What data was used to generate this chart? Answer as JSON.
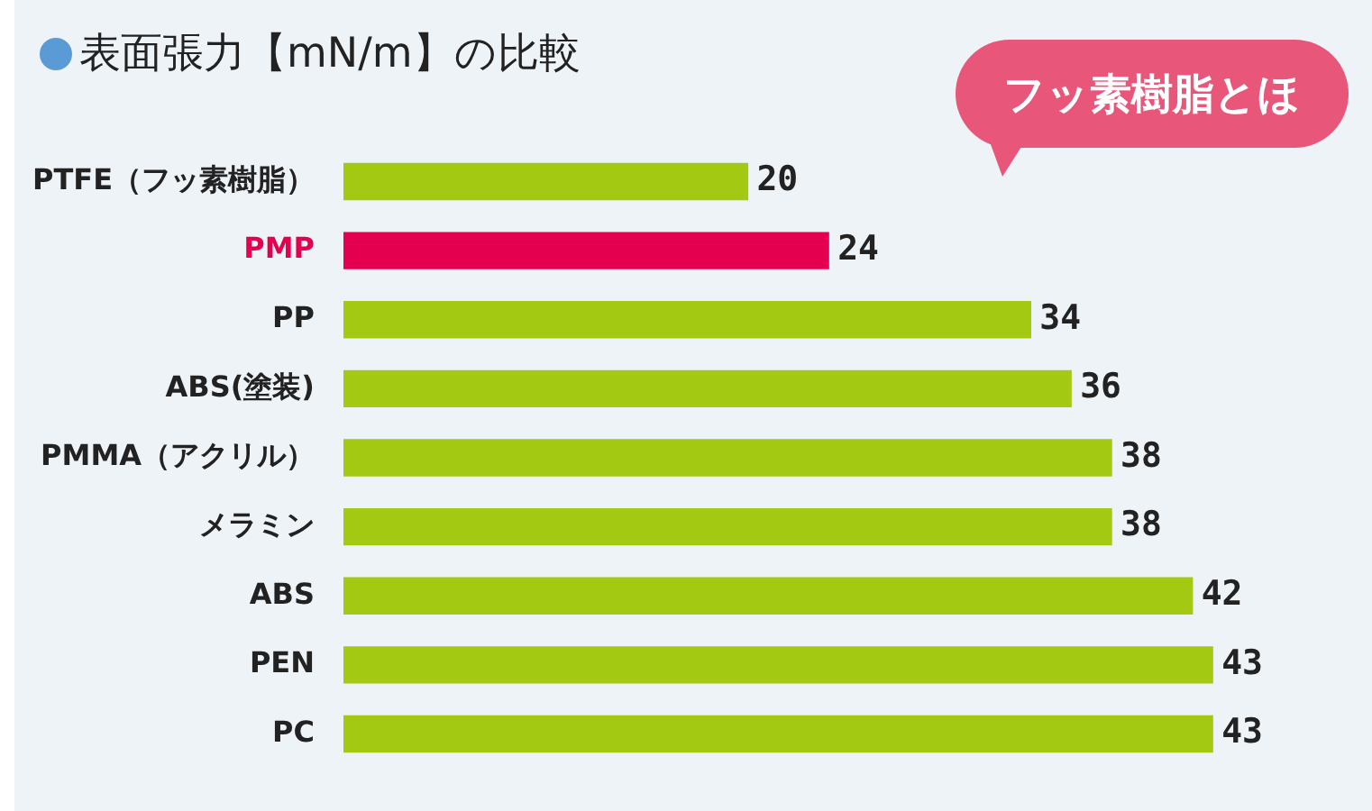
{
  "chart_data": {
    "type": "bar",
    "orientation": "horizontal",
    "title": "表面張力【mN/m】の比較",
    "categories": [
      "PTFE（フッ素樹脂）",
      "PMP",
      "PP",
      "ABS(塗装)",
      "PMMA（アクリル）",
      "メラミン",
      "ABS",
      "PEN",
      "PC"
    ],
    "values": [
      20,
      24,
      34,
      36,
      38,
      38,
      42,
      43,
      43
    ],
    "colors": [
      "#a3c913",
      "#e5004f",
      "#a3c913",
      "#a3c913",
      "#a3c913",
      "#a3c913",
      "#a3c913",
      "#a3c913",
      "#a3c913"
    ],
    "data_labels": true,
    "legend": false,
    "annotations": [
      "フッ素樹脂とほ"
    ]
  }
}
